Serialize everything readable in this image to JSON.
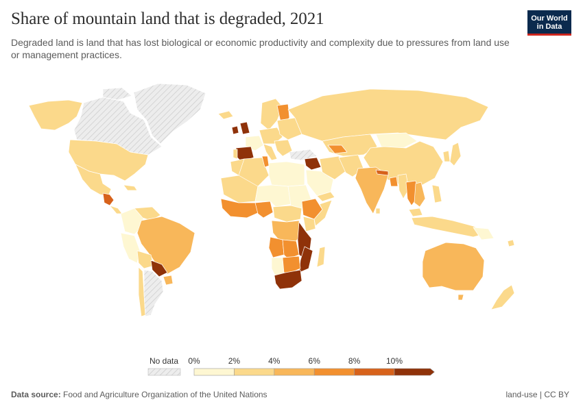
{
  "header": {
    "title": "Share of mountain land that is degraded, 2021",
    "subtitle": "Degraded land is land that has lost biological or economic productivity and complexity due to pressures from land use or management practices.",
    "logo_line1": "Our World",
    "logo_line2": "in Data"
  },
  "legend": {
    "no_data_label": "No data",
    "tick_labels": [
      "0%",
      "2%",
      "4%",
      "6%",
      "8%",
      "10%"
    ],
    "bin_colors": [
      "#fef7d2",
      "#fbd98b",
      "#f8b75a",
      "#f2902f",
      "#d7621b",
      "#8f3209"
    ]
  },
  "colors": {
    "no_data_fill": "#e8e8e8",
    "no_data_hatch": "#c8c8c8",
    "border": "#ffffff",
    "ocean": "#ffffff"
  },
  "footer": {
    "source_label": "Data source:",
    "source_text": "Food and Agriculture Organization of the United Nations",
    "right_text": "land-use | CC BY"
  }
}
